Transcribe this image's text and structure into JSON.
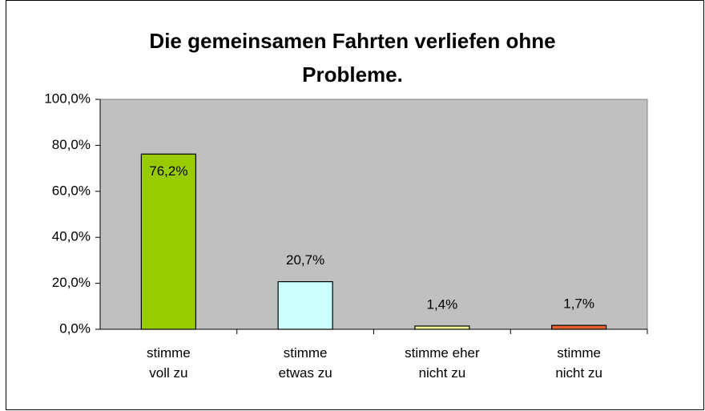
{
  "chart_data": {
    "type": "bar",
    "title": "Die gemeinsamen Fahrten verliefen ohne Probleme.",
    "categories": [
      "stimme\nvoll zu",
      "stimme\netwas zu",
      "stimme eher\nnicht zu",
      "stimme\nnicht zu"
    ],
    "values": [
      76.2,
      20.7,
      1.4,
      1.7
    ],
    "value_labels": [
      "76,2%",
      "20,7%",
      "1,4%",
      "1,7%"
    ],
    "colors": [
      "#99cc00",
      "#ccffff",
      "#ffff99",
      "#e8602c"
    ],
    "ylim": [
      0,
      100
    ],
    "yticks": [
      {
        "value": 0,
        "label": "0,0%"
      },
      {
        "value": 20,
        "label": "20,0%"
      },
      {
        "value": 40,
        "label": "40,0%"
      },
      {
        "value": 60,
        "label": "60,0%"
      },
      {
        "value": 80,
        "label": "80,0%"
      },
      {
        "value": 100,
        "label": "100,0%"
      }
    ],
    "plot_background": "#c0c0c0"
  }
}
